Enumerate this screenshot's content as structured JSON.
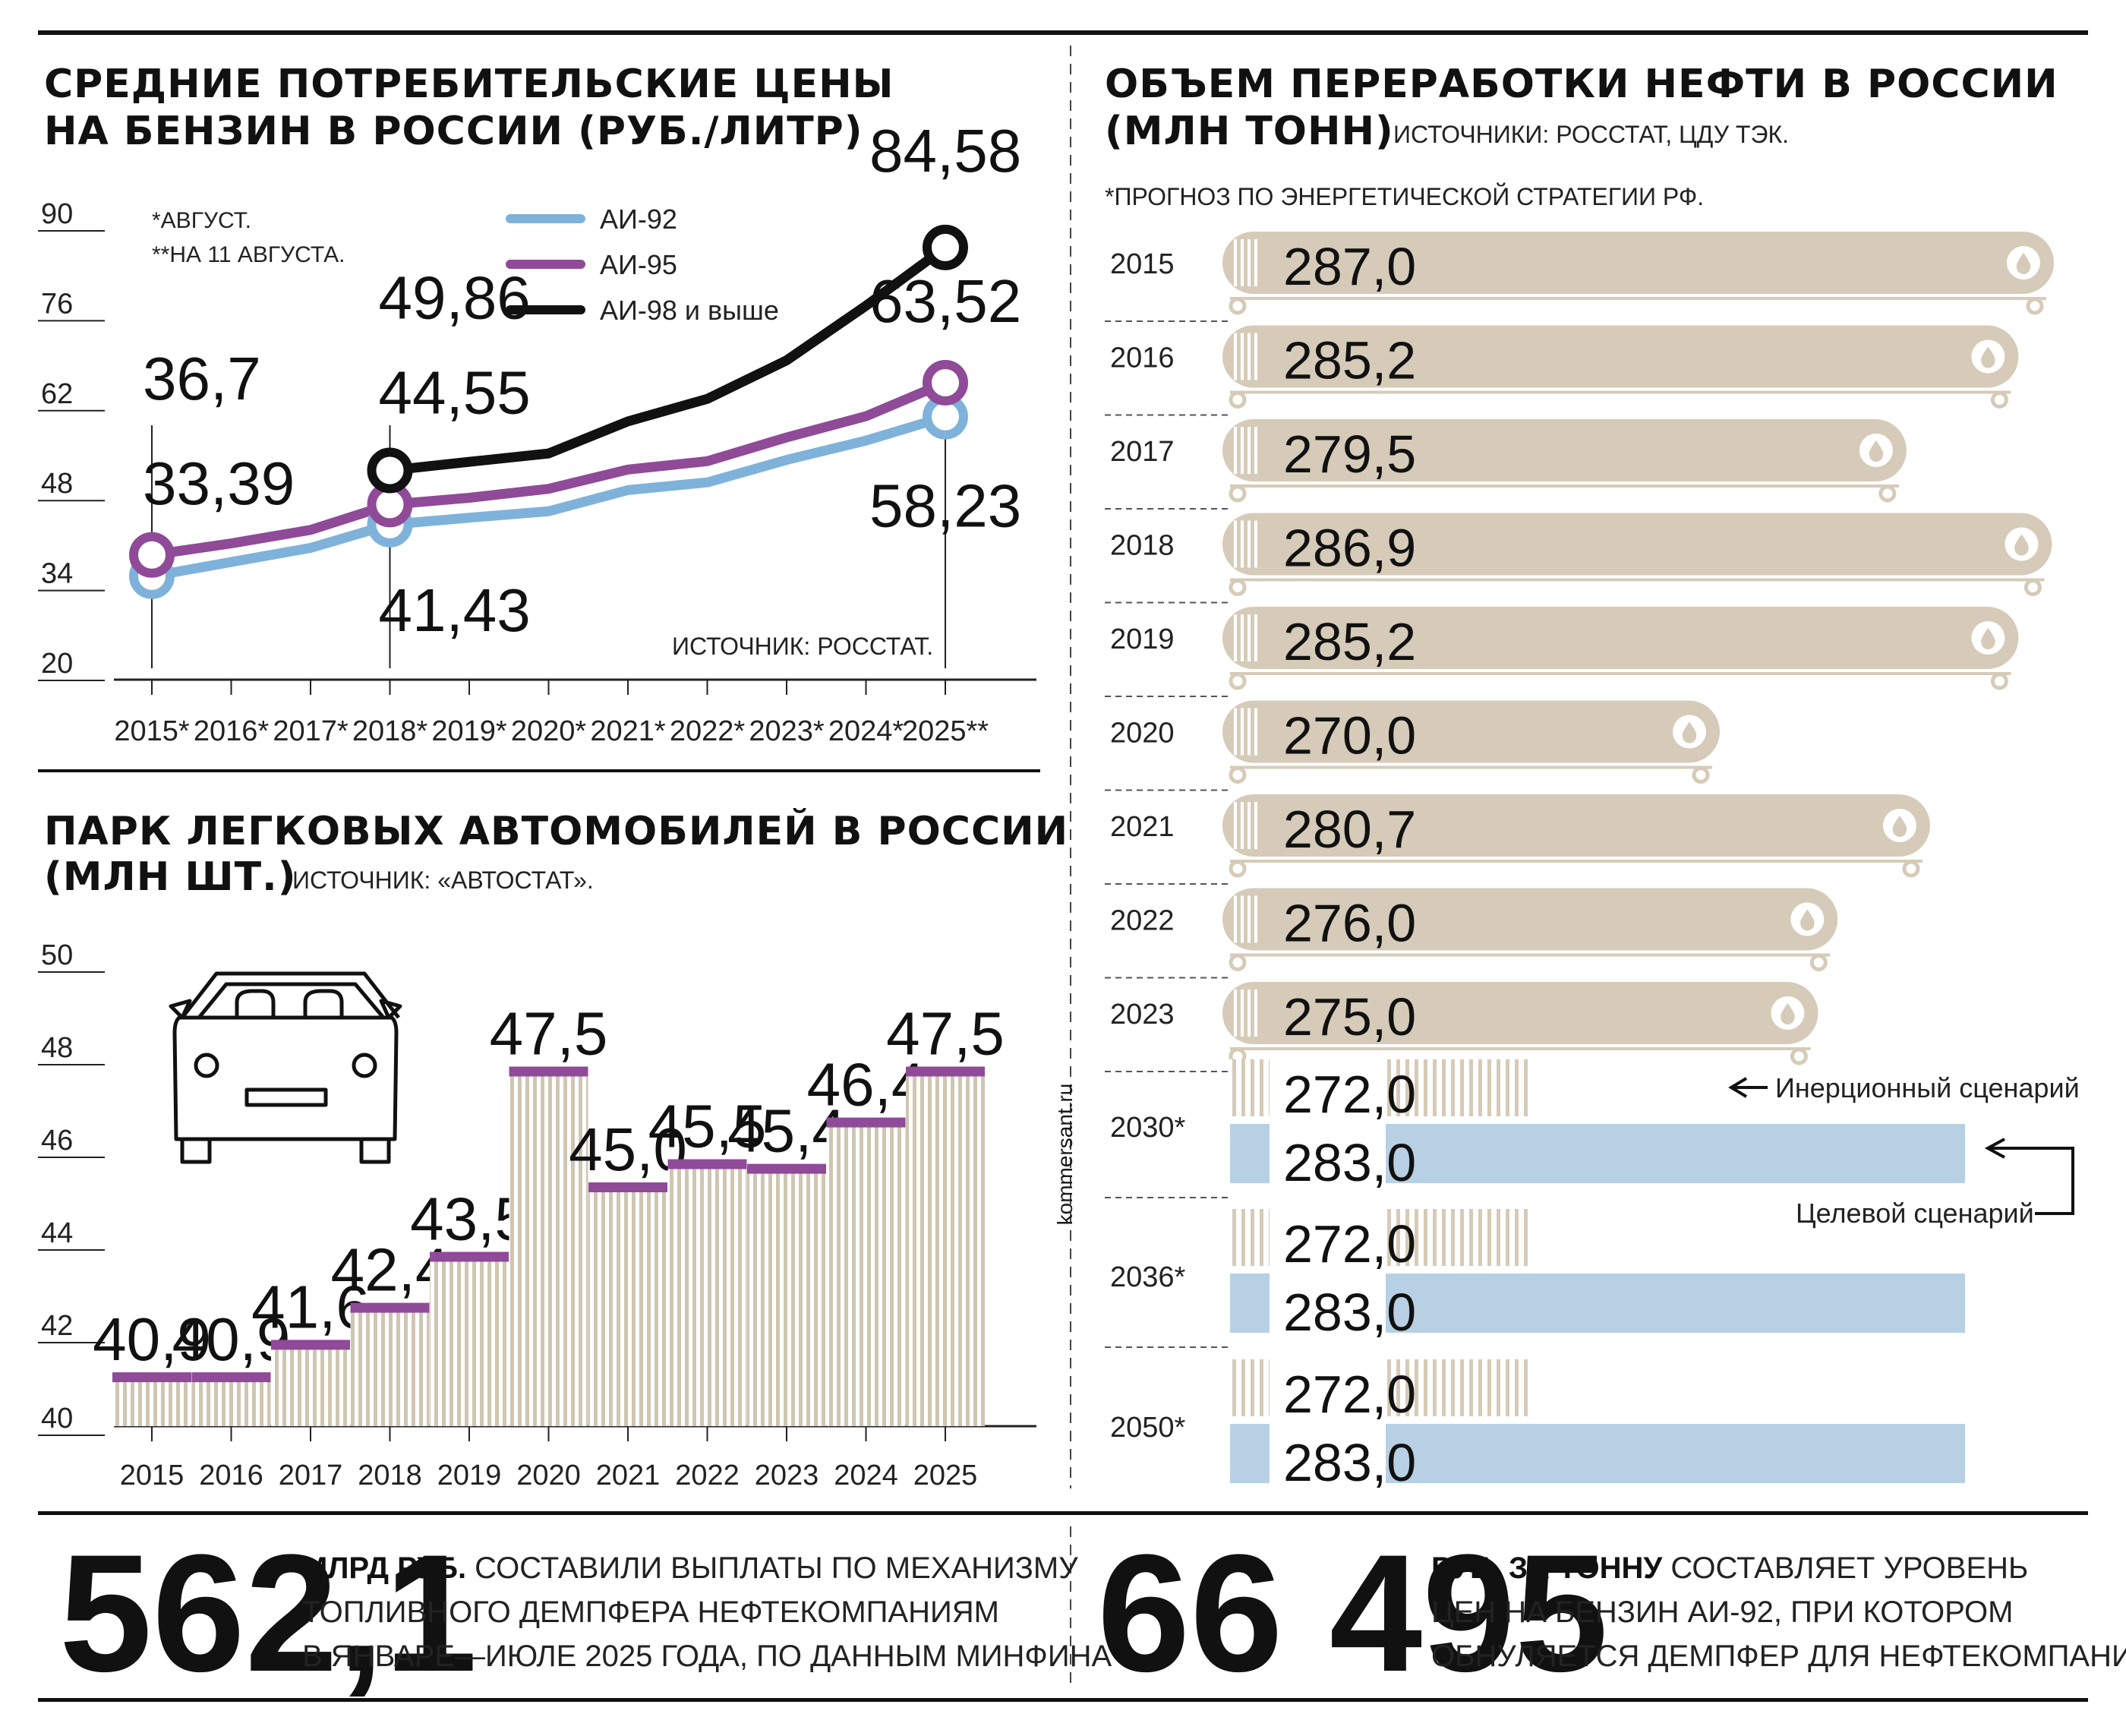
{
  "colors": {
    "ai92": "#7fb2da",
    "ai95": "#8f4a98",
    "ai98": "#111111",
    "tank": "#d5cbb8",
    "stripe": "#cfc6b2",
    "target": "#b8d0e3",
    "purple_cap": "#8f4a98"
  },
  "fuel": {
    "title_line1": "СРЕДНИЕ ПОТРЕБИТЕЛЬСКИЕ ЦЕНЫ",
    "title_line2": "НА БЕНЗИН В РОССИИ (РУБ./ЛИТР)",
    "note1": "*АВГУСТ.",
    "note2": "**НА 11 АВГУСТА.",
    "source": "ИСТОЧНИК: РОССТАТ."
  },
  "cars": {
    "title_line1": "ПАРК ЛЕГКОВЫХ АВТОМОБИЛЕЙ В РОССИИ",
    "title_line2": "(МЛН ШТ.)",
    "source": "ИСТОЧНИК: «АВТОСТАТ»."
  },
  "oil": {
    "title_line1": "ОБЪЕМ ПЕРЕРАБОТКИ НЕФТИ В РОССИИ",
    "title_line2": "(МЛН ТОНН)",
    "source": "ИСТОЧНИКИ: РОССТАТ, ЦДУ ТЭК.",
    "note": "*ПРОГНОЗ ПО ЭНЕРГЕТИЧЕСКОЙ СТРАТЕГИИ РФ.",
    "label_inertial": "Инерционный сценарий",
    "label_target": "Целевой сценарий"
  },
  "watermark": "kommersant.ru",
  "footer": {
    "left_number": "562,1",
    "left_bold": "МЛРД РУБ.",
    "left_line1_rest": " СОСТАВИЛИ ВЫПЛАТЫ ПО МЕХАНИЗМУ",
    "left_line2": "ТОПЛИВНОГО ДЕМПФЕРА НЕФТЕКОМПАНИЯМ",
    "left_line3": "В ЯНВАРЕ—ИЮЛЕ 2025 ГОДА, ПО ДАННЫМ МИНФИНА",
    "right_number": "66 495",
    "right_bold": "РУБ. ЗА ТОННУ",
    "right_line1_rest": " СОСТАВЛЯЕТ УРОВЕНЬ",
    "right_line2": "ЦЕН НА БЕНЗИН АИ-92, ПРИ КОТОРОМ",
    "right_line3": "ОБНУЛЯЕТСЯ ДЕМПФЕР ДЛЯ НЕФТЕКОМПАНИЙ"
  },
  "chart_data": [
    {
      "type": "line",
      "title": "СРЕДНИЕ ПОТРЕБИТЕЛЬСКИЕ ЦЕНЫ НА БЕНЗИН В РОССИИ (РУБ./ЛИТР)",
      "categories": [
        "2015*",
        "2016*",
        "2017*",
        "2018*",
        "2019*",
        "2020*",
        "2021*",
        "2022*",
        "2023*",
        "2024*",
        "2025**"
      ],
      "yticks": [
        "90",
        "76",
        "62",
        "48",
        "34",
        "20"
      ],
      "ylim": [
        20,
        90
      ],
      "series": [
        {
          "name": "АИ-92",
          "values": [
            33.39,
            35.6,
            37.8,
            41.43,
            42.5,
            43.5,
            46.8,
            48.0,
            51.5,
            54.5,
            58.23
          ]
        },
        {
          "name": "АИ-95",
          "values": [
            36.7,
            38.5,
            40.6,
            44.55,
            45.6,
            47.0,
            50.0,
            51.3,
            55.0,
            58.3,
            63.52
          ]
        },
        {
          "name": "АИ-98 и выше",
          "values": [
            null,
            null,
            null,
            49.86,
            51.2,
            52.5,
            57.5,
            61.0,
            67.0,
            75.5,
            84.58
          ]
        }
      ],
      "labels": [
        {
          "text": "36,7",
          "series": 1,
          "index": 0
        },
        {
          "text": "33,39",
          "series": 0,
          "index": 0
        },
        {
          "text": "49,86",
          "series": 2,
          "index": 3
        },
        {
          "text": "44,55",
          "series": 1,
          "index": 3
        },
        {
          "text": "41,43",
          "series": 0,
          "index": 3
        },
        {
          "text": "84,58",
          "series": 2,
          "index": 10
        },
        {
          "text": "63,52",
          "series": 1,
          "index": 10
        },
        {
          "text": "58,23",
          "series": 0,
          "index": 10
        }
      ],
      "legend": "top-center"
    },
    {
      "type": "bar",
      "title": "ПАРК ЛЕГКОВЫХ АВТОМОБИЛЕЙ В РОССИИ (МЛН ШТ.)",
      "categories": [
        "2015",
        "2016",
        "2017",
        "2018",
        "2019",
        "2020",
        "2021",
        "2022",
        "2023",
        "2024",
        "2025"
      ],
      "values": [
        40.9,
        40.9,
        41.6,
        42.4,
        43.5,
        47.5,
        45.0,
        45.5,
        45.4,
        46.4,
        47.5
      ],
      "value_labels": [
        "40,9",
        "40,9",
        "41,6",
        "42,4",
        "43,5",
        "47,5",
        "45,0",
        "45,5",
        "45,4",
        "46,4",
        "47,5"
      ],
      "yticks": [
        "50",
        "48",
        "46",
        "44",
        "42",
        "40"
      ],
      "ylim": [
        40,
        50
      ]
    },
    {
      "type": "bar",
      "title": "ОБЪЕМ ПЕРЕРАБОТКИ НЕФТИ В РОССИИ (МЛН ТОНН)",
      "categories": [
        "2015",
        "2016",
        "2017",
        "2018",
        "2019",
        "2020",
        "2021",
        "2022",
        "2023"
      ],
      "values": [
        287.0,
        285.2,
        279.5,
        286.9,
        285.2,
        270.0,
        280.7,
        276.0,
        275.0
      ],
      "value_labels": [
        "287,0",
        "285,2",
        "279,5",
        "286,9",
        "285,2",
        "270,0",
        "280,7",
        "276,0",
        "275,0"
      ],
      "forecast": {
        "categories": [
          "2030*",
          "2036*",
          "2050*"
        ],
        "series": [
          {
            "name": "Инерционный сценарий",
            "values": [
              272.0,
              272.0,
              272.0
            ],
            "value_labels": [
              "272,0",
              "272,0",
              "272,0"
            ]
          },
          {
            "name": "Целевой сценарий",
            "values": [
              283.0,
              283.0,
              283.0
            ],
            "value_labels": [
              "283,0",
              "283,0",
              "283,0"
            ]
          }
        ]
      }
    }
  ]
}
